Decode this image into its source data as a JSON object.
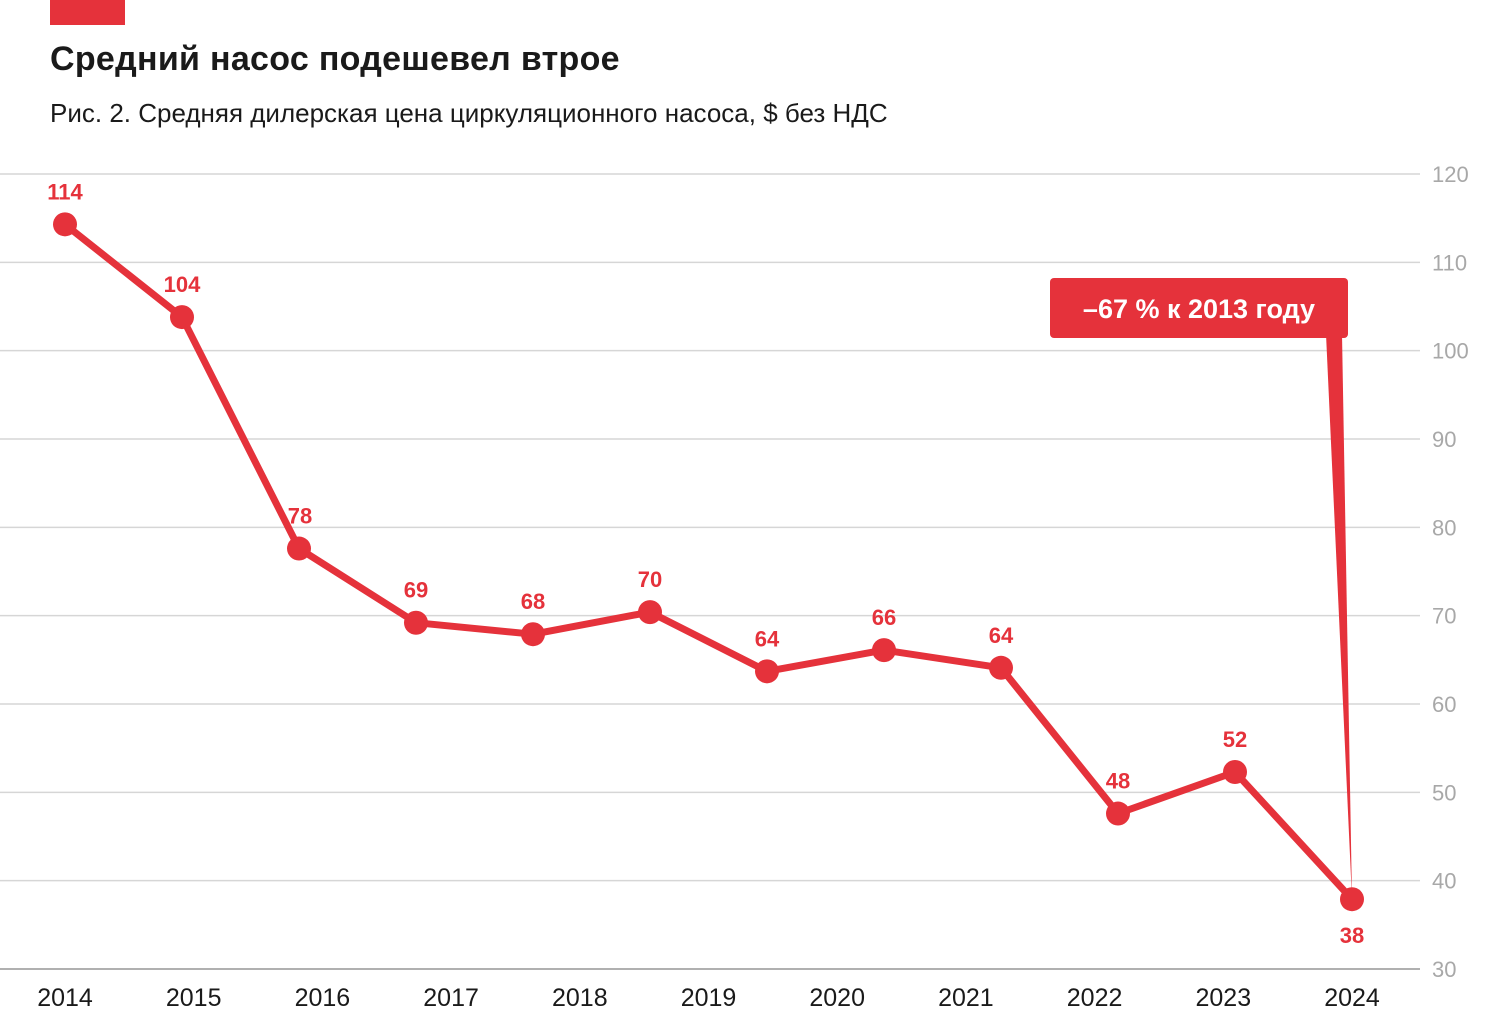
{
  "header": {
    "title": "Средний насос подешевел втрое",
    "subtitle": "Рис. 2. Средняя дилерская цена циркуляционного насоса, $ без НДС"
  },
  "colors": {
    "accent": "#e5323b",
    "grid": "#d6d6d6",
    "ytick": "#a8a8a8",
    "text": "#1a1a1a"
  },
  "chart_data": {
    "type": "line",
    "title": "Средний насос подешевел втрое",
    "subtitle": "Рис. 2. Средняя дилерская цена циркуляционного насоса, $ без НДС",
    "categories": [
      "2014",
      "2015",
      "2016",
      "2017",
      "2018",
      "2019",
      "2020",
      "2021",
      "2022",
      "2023",
      "2024"
    ],
    "points": [
      {
        "x": 2013.0,
        "y": 114.3,
        "label": "114"
      },
      {
        "x": 2014.0,
        "y": 103.8,
        "label": "104"
      },
      {
        "x": 2015.0,
        "y": 77.6,
        "label": "78"
      },
      {
        "x": 2016.0,
        "y": 69.2,
        "label": "69"
      },
      {
        "x": 2017.0,
        "y": 67.9,
        "label": "68"
      },
      {
        "x": 2018.0,
        "y": 70.4,
        "label": "70"
      },
      {
        "x": 2019.0,
        "y": 63.7,
        "label": "64"
      },
      {
        "x": 2020.0,
        "y": 66.1,
        "label": "66"
      },
      {
        "x": 2021.0,
        "y": 64.1,
        "label": "64"
      },
      {
        "x": 2022.0,
        "y": 47.6,
        "label": "48"
      },
      {
        "x": 2023.0,
        "y": 52.3,
        "label": "52"
      },
      {
        "x": 2024.0,
        "y": 37.9,
        "label": "38"
      }
    ],
    "ylim": [
      30,
      120
    ],
    "yticks": [
      30,
      40,
      50,
      60,
      70,
      80,
      90,
      100,
      110,
      120
    ],
    "y_axis_side": "right",
    "grid": true,
    "xlabel": "",
    "ylabel": "",
    "annotation": {
      "text": "–67 % к 2013 году",
      "target_x": 2024.0,
      "target_y": 37.9
    }
  }
}
